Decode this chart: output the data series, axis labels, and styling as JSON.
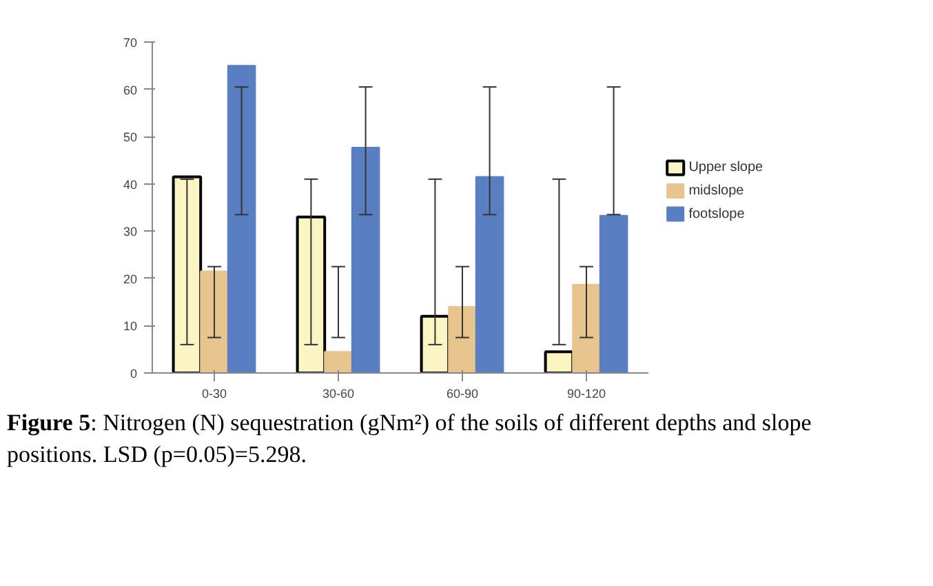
{
  "chart_data": {
    "type": "bar",
    "categories": [
      "0-30",
      "30-60",
      "60-90",
      "90-120"
    ],
    "series": [
      {
        "name": "Upper slope",
        "color": "#fbf5c4",
        "values": [
          41.5,
          33,
          12,
          4.5
        ],
        "errors": [
          [
            6,
            41
          ],
          [
            6,
            41
          ],
          [
            6,
            41
          ],
          [
            6,
            41
          ]
        ]
      },
      {
        "name": "midslope",
        "color": "#e8c48e",
        "values": [
          21.5,
          4.5,
          14,
          18.7
        ],
        "errors": [
          [
            7.5,
            22.5
          ],
          [
            7.5,
            22.5
          ],
          [
            7.5,
            22.5
          ],
          [
            7.5,
            22.5
          ]
        ]
      },
      {
        "name": "footslope",
        "color": "#5a7ec2",
        "values": [
          65,
          47.7,
          41.5,
          33.3
        ],
        "errors": [
          [
            33.5,
            60.5
          ],
          [
            33.5,
            60.5
          ],
          [
            33.5,
            60.5
          ],
          [
            33.5,
            60.5
          ]
        ]
      }
    ],
    "ylim": [
      0,
      70
    ],
    "yticks": [
      0,
      10,
      20,
      30,
      40,
      50,
      60,
      70
    ],
    "grid": false,
    "legend": "right",
    "annotations": [
      "Figure 5: Nitrogen (N) sequestration (gNm²) of the soils of different depths and slope positions. LSD (p=0.05)=5.298."
    ]
  }
}
